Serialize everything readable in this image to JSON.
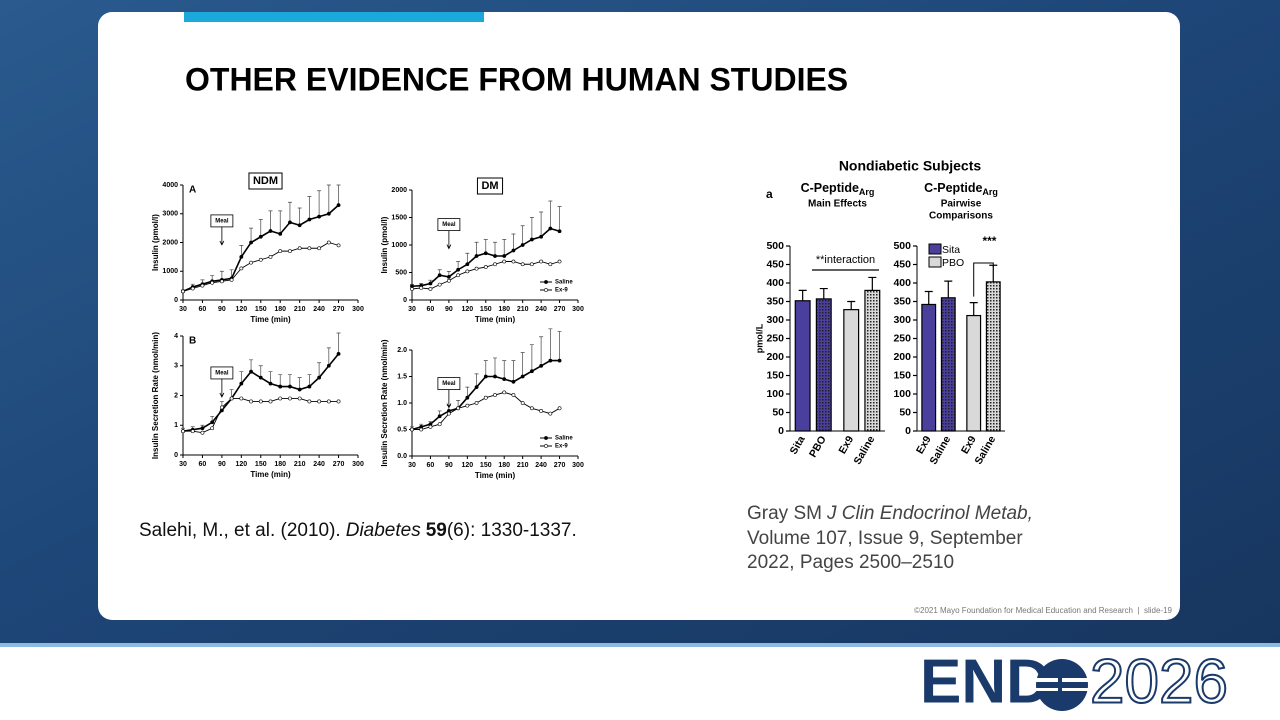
{
  "slide": {
    "title": "OTHER EVIDENCE FROM HUMAN STUDIES",
    "citation_left": {
      "authors": "Salehi, M., et al. (2010).",
      "journal": "Diabetes",
      "volume": "59",
      "rest": "(6): 1330-1337."
    },
    "citation_right": {
      "author": "Gray SM",
      "journal": "J Clin Endocrinol Metab,",
      "line2": "Volume 107, Issue 9, September",
      "line3": "2022, Pages 2500–2510"
    },
    "figure_right_title": "Nondiabetic Subjects",
    "figure_right_panel": "a",
    "footer": "©2021 Mayo Foundation for Medical Education and Research  |  slide-19",
    "logo": {
      "left": "END",
      "right": "2026"
    }
  },
  "chart_data": [
    {
      "type": "line",
      "title": "NDM",
      "panel": "A",
      "y_label": "Insulin (pmol/l)",
      "x_label": "Time (min)",
      "x": [
        30,
        45,
        60,
        75,
        90,
        105,
        120,
        135,
        150,
        165,
        180,
        195,
        210,
        225,
        240,
        255,
        270
      ],
      "xlim": [
        30,
        300
      ],
      "xticks": [
        30,
        60,
        90,
        120,
        150,
        180,
        210,
        240,
        270,
        300
      ],
      "ylim": [
        0,
        4000
      ],
      "yticks": [
        0,
        1000,
        2000,
        3000,
        4000
      ],
      "annotation": {
        "text": "Meal",
        "x": 90
      },
      "series": [
        {
          "style": "solid",
          "color": "#000000",
          "values": [
            300,
            450,
            550,
            650,
            700,
            750,
            1500,
            2000,
            2200,
            2400,
            2300,
            2700,
            2600,
            2800,
            2900,
            3000,
            3300
          ],
          "errors": [
            50,
            100,
            150,
            200,
            300,
            300,
            400,
            500,
            600,
            700,
            800,
            700,
            600,
            800,
            900,
            1000,
            700
          ]
        },
        {
          "style": "open",
          "color": "#000000",
          "values": [
            300,
            400,
            500,
            600,
            650,
            700,
            1100,
            1300,
            1400,
            1500,
            1700,
            1700,
            1800,
            1800,
            1800,
            2000,
            1900
          ]
        }
      ]
    },
    {
      "type": "line",
      "title": "DM",
      "y_label": "Insulin (pmol/l)",
      "x_label": "Time (min)",
      "x": [
        30,
        45,
        60,
        75,
        90,
        105,
        120,
        135,
        150,
        165,
        180,
        195,
        210,
        225,
        240,
        255,
        270
      ],
      "xlim": [
        30,
        300
      ],
      "xticks": [
        30,
        60,
        90,
        120,
        150,
        180,
        210,
        240,
        270,
        300
      ],
      "ylim": [
        0,
        2000
      ],
      "yticks": [
        0,
        500,
        1000,
        1500,
        2000
      ],
      "annotation": {
        "text": "Meal",
        "x": 90
      },
      "legend": true,
      "series": [
        {
          "name": "Saline",
          "style": "solid",
          "color": "#000000",
          "values": [
            250,
            260,
            300,
            450,
            420,
            550,
            650,
            800,
            850,
            800,
            800,
            900,
            1000,
            1100,
            1150,
            1300,
            1250
          ],
          "errors": [
            30,
            40,
            60,
            100,
            100,
            150,
            200,
            250,
            250,
            250,
            300,
            300,
            350,
            400,
            450,
            500,
            450
          ]
        },
        {
          "name": "Ex-9",
          "style": "open",
          "color": "#000000",
          "values": [
            200,
            220,
            200,
            280,
            350,
            450,
            520,
            570,
            600,
            650,
            700,
            700,
            650,
            650,
            700,
            650,
            700
          ]
        }
      ]
    },
    {
      "type": "line",
      "panel": "B",
      "y_label": "Insulin Secretion Rate (nmol/min)",
      "x_label": "Time (min)",
      "x": [
        30,
        45,
        60,
        75,
        90,
        105,
        120,
        135,
        150,
        165,
        180,
        195,
        210,
        225,
        240,
        255,
        270
      ],
      "xlim": [
        30,
        300
      ],
      "xticks": [
        30,
        60,
        90,
        120,
        150,
        180,
        210,
        240,
        270,
        300
      ],
      "ylim": [
        0,
        4
      ],
      "yticks": [
        0,
        1,
        2,
        3,
        4
      ],
      "annotation": {
        "text": "Meal",
        "x": 90
      },
      "series": [
        {
          "style": "solid",
          "color": "#000000",
          "values": [
            0.8,
            0.85,
            0.9,
            1.1,
            1.5,
            1.9,
            2.4,
            2.8,
            2.6,
            2.4,
            2.3,
            2.3,
            2.2,
            2.3,
            2.6,
            3.0,
            3.4
          ],
          "errors": [
            0.1,
            0.1,
            0.1,
            0.2,
            0.3,
            0.3,
            0.4,
            0.4,
            0.4,
            0.4,
            0.4,
            0.4,
            0.4,
            0.4,
            0.5,
            0.6,
            0.7
          ]
        },
        {
          "style": "open",
          "color": "#000000",
          "values": [
            0.8,
            0.8,
            0.75,
            0.9,
            1.6,
            1.9,
            1.9,
            1.8,
            1.8,
            1.8,
            1.9,
            1.9,
            1.9,
            1.8,
            1.8,
            1.8,
            1.8
          ]
        }
      ]
    },
    {
      "type": "line",
      "y_label": "Insulin Secretion Rate (nmol/min)",
      "x_label": "Time (min)",
      "x": [
        30,
        45,
        60,
        75,
        90,
        105,
        120,
        135,
        150,
        165,
        180,
        195,
        210,
        225,
        240,
        255,
        270
      ],
      "xlim": [
        30,
        300
      ],
      "xticks": [
        30,
        60,
        90,
        120,
        150,
        180,
        210,
        240,
        270,
        300
      ],
      "ylim": [
        0,
        2
      ],
      "yticks": [
        {
          "value": 0,
          "label": "0.0"
        },
        0.5,
        {
          "value": 1,
          "label": "1.0"
        },
        1.5,
        {
          "value": 2,
          "label": "2.0"
        }
      ],
      "annotation": {
        "text": "Meal",
        "x": 90
      },
      "legend": true,
      "series": [
        {
          "name": "Saline",
          "style": "solid",
          "color": "#000000",
          "values": [
            0.5,
            0.55,
            0.6,
            0.75,
            0.85,
            0.9,
            1.1,
            1.3,
            1.5,
            1.5,
            1.45,
            1.4,
            1.5,
            1.6,
            1.7,
            1.8,
            1.8
          ],
          "errors": [
            0.05,
            0.05,
            0.05,
            0.1,
            0.1,
            0.15,
            0.2,
            0.25,
            0.3,
            0.35,
            0.35,
            0.4,
            0.45,
            0.5,
            0.55,
            0.6,
            0.55
          ]
        },
        {
          "name": "Ex-9",
          "style": "open",
          "color": "#000000",
          "values": [
            0.5,
            0.5,
            0.55,
            0.6,
            0.8,
            0.9,
            0.95,
            1.0,
            1.1,
            1.15,
            1.2,
            1.15,
            1.0,
            0.9,
            0.85,
            0.8,
            0.9
          ]
        }
      ]
    },
    {
      "type": "bar",
      "title": "C-Peptide",
      "title_subscript": "Arg",
      "subtitle": [
        "Main Effects"
      ],
      "y_label": "pmol/L",
      "categories": [
        "Sita",
        "PBO",
        "Ex9",
        "Saline"
      ],
      "values": [
        352,
        357,
        328,
        380
      ],
      "errors": [
        28,
        28,
        22,
        35
      ],
      "colors": [
        "#4b3f9e",
        "#4b3f9e",
        "#d9d9d9",
        "#d9d9d9"
      ],
      "hatched": [
        false,
        true,
        false,
        true
      ],
      "ylim": [
        0,
        500
      ],
      "yticks": [
        0,
        50,
        100,
        150,
        200,
        250,
        300,
        350,
        400,
        450,
        500
      ],
      "annotation": "**interaction"
    },
    {
      "type": "bar",
      "title": "C-Peptide",
      "title_subscript": "Arg",
      "subtitle": [
        "Pairwise",
        "Comparisons"
      ],
      "categories": [
        "Ex9",
        "Saline",
        "Ex9",
        "Saline"
      ],
      "values": [
        342,
        360,
        312,
        403
      ],
      "errors": [
        35,
        45,
        35,
        45
      ],
      "colors": [
        "#4b3f9e",
        "#4b3f9e",
        "#d9d9d9",
        "#d9d9d9"
      ],
      "hatched": [
        false,
        true,
        false,
        true
      ],
      "ylim": [
        0,
        500
      ],
      "yticks": [
        0,
        50,
        100,
        150,
        200,
        250,
        300,
        350,
        400,
        450,
        500
      ],
      "legend": [
        {
          "name": "Sita",
          "color": "#4b3f9e"
        },
        {
          "name": "PBO",
          "color": "#d9d9d9"
        }
      ],
      "annotation": "***"
    }
  ]
}
